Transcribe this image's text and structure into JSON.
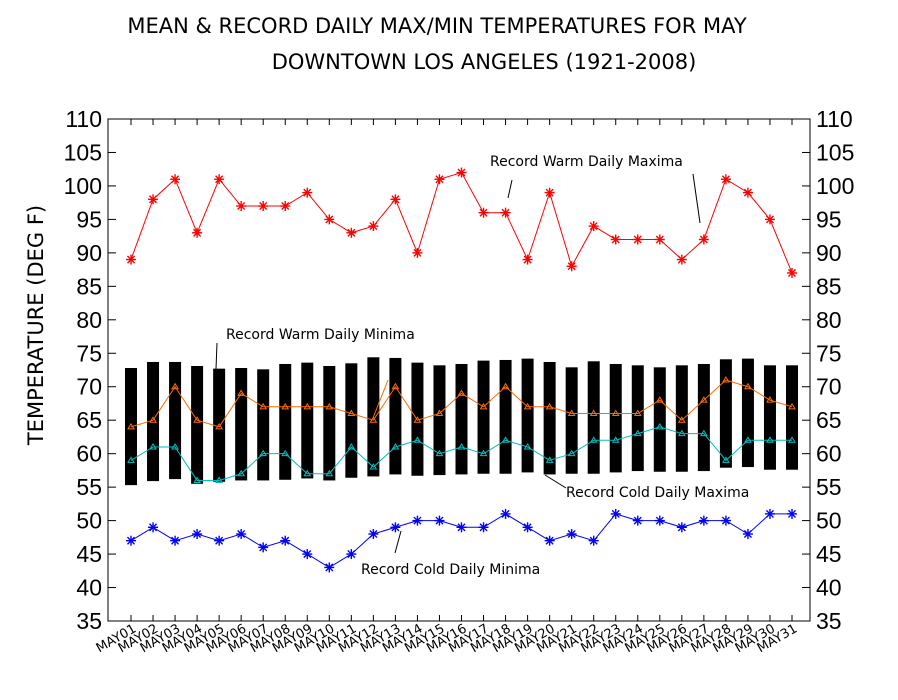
{
  "chart_data": {
    "type": "line",
    "title": "MEAN & RECORD DAILY MAX/MIN TEMPERATURES FOR MAY",
    "subtitle": "DOWNTOWN LOS ANGELES (1921-2008)",
    "ylabel": "TEMPERATURE (DEG F)",
    "xlabel": "",
    "ylim": [
      35,
      110
    ],
    "yticks": [
      35,
      40,
      45,
      50,
      55,
      60,
      65,
      70,
      75,
      80,
      85,
      90,
      95,
      100,
      105,
      110
    ],
    "categories": [
      "MAY01",
      "MAY02",
      "MAY03",
      "MAY04",
      "MAY05",
      "MAY06",
      "MAY07",
      "MAY08",
      "MAY09",
      "MAY10",
      "MAY11",
      "MAY12",
      "MAY13",
      "MAY14",
      "MAY15",
      "MAY16",
      "MAY17",
      "MAY18",
      "MAY19",
      "MAY20",
      "MAY21",
      "MAY22",
      "MAY23",
      "MAY24",
      "MAY25",
      "MAY26",
      "MAY27",
      "MAY28",
      "MAY29",
      "MAY30",
      "MAY31"
    ],
    "mean_range": {
      "color": "#000000",
      "high": [
        72.8,
        73.7,
        73.7,
        73.1,
        72.7,
        72.8,
        72.6,
        73.4,
        73.6,
        73.1,
        73.5,
        74.4,
        74.3,
        73.6,
        73.2,
        73.4,
        73.9,
        74.0,
        74.2,
        73.7,
        72.9,
        73.8,
        73.4,
        73.2,
        72.9,
        73.2,
        73.4,
        74.1,
        74.2,
        73.2,
        73.2
      ],
      "low": [
        55.3,
        55.9,
        56.2,
        55.5,
        55.8,
        56.0,
        56.0,
        56.1,
        56.3,
        56.0,
        56.4,
        56.6,
        56.9,
        56.7,
        56.8,
        56.9,
        57.0,
        57.0,
        57.2,
        56.9,
        57.0,
        57.0,
        57.2,
        57.4,
        57.3,
        57.3,
        57.4,
        57.9,
        58.0,
        57.6,
        57.6
      ]
    },
    "series": [
      {
        "name": "Record Warm Daily Maxima",
        "color": "#ff0000",
        "marker": "asterisk",
        "values": [
          89,
          98,
          101,
          93,
          101,
          97,
          97,
          97,
          99,
          95,
          93,
          94,
          98,
          90,
          101,
          102,
          96,
          96,
          89,
          99,
          88,
          94,
          92,
          92,
          92,
          89,
          92,
          101,
          99,
          95,
          87
        ]
      },
      {
        "name": "Record Warm Daily Minima",
        "color": "#ff6a00",
        "marker": "triangle",
        "values": [
          64,
          65,
          70,
          65,
          64,
          69,
          67,
          67,
          67,
          67,
          66,
          65,
          70,
          65,
          66,
          69,
          67,
          70,
          67,
          67,
          66,
          66,
          66,
          66,
          68,
          65,
          68,
          71,
          70,
          68,
          67
        ]
      },
      {
        "name": "Record Cold Daily Maxima",
        "color": "#00bfbf",
        "marker": "triangle",
        "values": [
          59,
          61,
          61,
          56,
          56,
          57,
          60,
          60,
          57,
          57,
          61,
          58,
          61,
          62,
          60,
          61,
          60,
          62,
          61,
          59,
          60,
          62,
          62,
          63,
          64,
          63,
          63,
          59,
          62,
          62,
          62
        ]
      },
      {
        "name": "Record Cold Daily Minima",
        "color": "#0000ff",
        "marker": "asterisk",
        "values": [
          47,
          49,
          47,
          48,
          47,
          48,
          46,
          47,
          45,
          43,
          45,
          48,
          49,
          50,
          50,
          49,
          49,
          51,
          49,
          47,
          48,
          47,
          51,
          50,
          50,
          49,
          50,
          50,
          48,
          51,
          51
        ]
      }
    ],
    "grid": false,
    "legend": "inline annotations"
  }
}
